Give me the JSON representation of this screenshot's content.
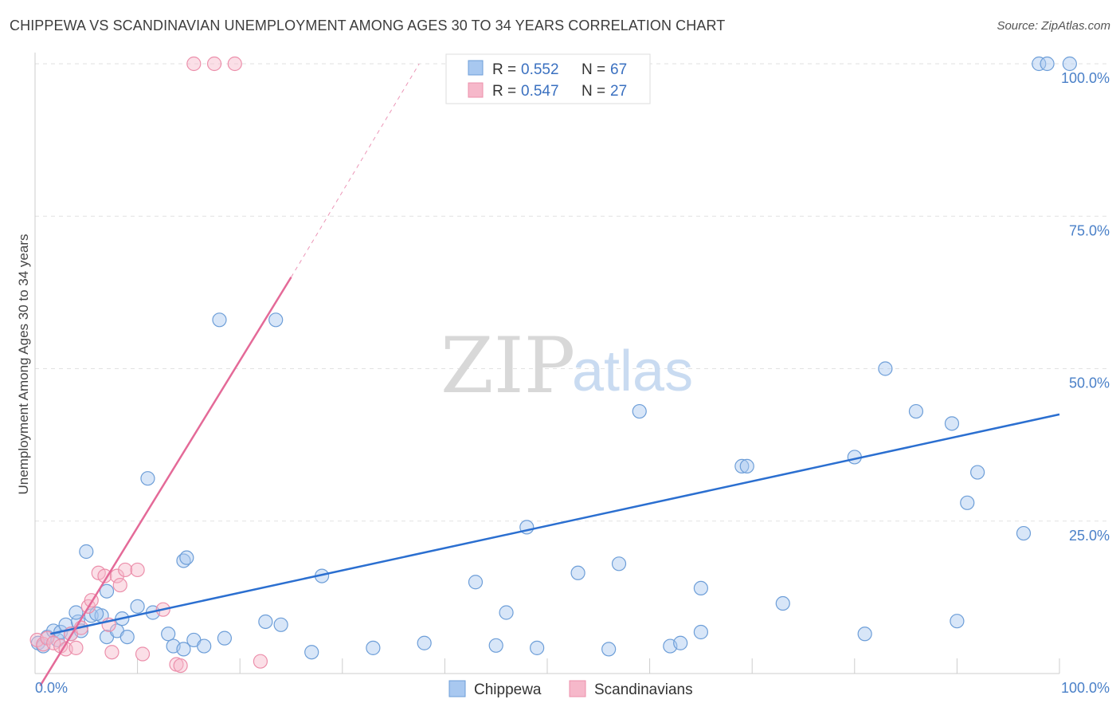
{
  "header": {
    "title": "CHIPPEWA VS SCANDINAVIAN UNEMPLOYMENT AMONG AGES 30 TO 34 YEARS CORRELATION CHART",
    "source": "Source: ZipAtlas.com"
  },
  "watermark": {
    "zip": "ZIP",
    "atlas": "atlas"
  },
  "legend": {
    "r_label": "R =",
    "n_label": "N =",
    "items": [
      {
        "r": "0.552",
        "n": "67",
        "color": "#a8c8f0"
      },
      {
        "r": "0.547",
        "n": "27",
        "color": "#f6b8ca"
      }
    ]
  },
  "chart_data": {
    "type": "scatter",
    "ylabel": "Unemployment Among Ages 30 to 34 years",
    "xlabel": "",
    "xlim": [
      0,
      100
    ],
    "ylim": [
      0,
      100
    ],
    "x_tick_labels": [
      "0.0%",
      "100.0%"
    ],
    "y_ticks": [
      {
        "value": 25,
        "label": "25.0%"
      },
      {
        "value": 50,
        "label": "50.0%"
      },
      {
        "value": 75,
        "label": "75.0%"
      },
      {
        "value": 100,
        "label": "100.0%"
      }
    ],
    "grid": "horizontal dashed",
    "legend_position": "top-center",
    "series": [
      {
        "name": "Chippewa",
        "color": "#a8c8f0",
        "stroke": "#6d9ed8",
        "trend": {
          "x": [
            1.5,
            100
          ],
          "y": [
            6.5,
            42.5
          ],
          "color": "#2b6fd0"
        },
        "points": [
          [
            0.3,
            5.0
          ],
          [
            0.8,
            4.5
          ],
          [
            1.2,
            6.0
          ],
          [
            1.8,
            7.0
          ],
          [
            2.2,
            5.5
          ],
          [
            2.5,
            6.8
          ],
          [
            3.0,
            8.0
          ],
          [
            3.5,
            6.5
          ],
          [
            4.2,
            8.5
          ],
          [
            4.5,
            7.0
          ],
          [
            5.5,
            9.5
          ],
          [
            6.5,
            9.5
          ],
          [
            7.0,
            6.0
          ],
          [
            8.0,
            7.0
          ],
          [
            8.5,
            9.0
          ],
          [
            9.0,
            6.0
          ],
          [
            10.0,
            11.0
          ],
          [
            11.5,
            10.0
          ],
          [
            13.0,
            6.5
          ],
          [
            13.5,
            4.5
          ],
          [
            14.5,
            4.0
          ],
          [
            15.5,
            5.5
          ],
          [
            16.5,
            4.5
          ],
          [
            18.5,
            5.8
          ],
          [
            22.5,
            8.5
          ],
          [
            24.0,
            8.0
          ],
          [
            27.0,
            3.5
          ],
          [
            33.0,
            4.2
          ],
          [
            38.0,
            5.0
          ],
          [
            45.0,
            4.6
          ],
          [
            49.0,
            4.2
          ],
          [
            56.0,
            4.0
          ],
          [
            65.0,
            6.8
          ],
          [
            73.0,
            11.5
          ],
          [
            81.0,
            6.5
          ],
          [
            90.0,
            8.6
          ],
          [
            62.0,
            4.5
          ],
          [
            63.0,
            5.0
          ],
          [
            5.0,
            20.0
          ],
          [
            7.0,
            13.5
          ],
          [
            11.0,
            32.0
          ],
          [
            14.5,
            18.5
          ],
          [
            14.8,
            19.0
          ],
          [
            18.0,
            58.0
          ],
          [
            23.5,
            58.0
          ],
          [
            28.0,
            16.0
          ],
          [
            43.0,
            15.0
          ],
          [
            46.0,
            10.0
          ],
          [
            48.0,
            24.0
          ],
          [
            53.0,
            16.5
          ],
          [
            57.0,
            18.0
          ],
          [
            59.0,
            43.0
          ],
          [
            65.0,
            14.0
          ],
          [
            69.0,
            34.0
          ],
          [
            69.5,
            34.0
          ],
          [
            80.0,
            35.5
          ],
          [
            83.0,
            50.0
          ],
          [
            86.0,
            43.0
          ],
          [
            89.5,
            41.0
          ],
          [
            91.0,
            28.0
          ],
          [
            92.0,
            33.0
          ],
          [
            96.5,
            23.0
          ],
          [
            98.0,
            100.0
          ],
          [
            98.8,
            100.0
          ],
          [
            101.0,
            100.0
          ],
          [
            4.0,
            10.0
          ],
          [
            6.0,
            9.8
          ]
        ]
      },
      {
        "name": "Scandinavians",
        "color": "#f6b8ca",
        "stroke": "#ec8fab",
        "trend": {
          "x": [
            0.5,
            25
          ],
          "y": [
            -2,
            65
          ],
          "dashed_to": [
            37.5,
            100
          ],
          "color": "#e46a98"
        },
        "points": [
          [
            0.2,
            5.5
          ],
          [
            0.8,
            4.8
          ],
          [
            1.2,
            5.8
          ],
          [
            1.8,
            5.0
          ],
          [
            2.5,
            4.5
          ],
          [
            3.0,
            4.0
          ],
          [
            3.5,
            6.5
          ],
          [
            4.0,
            4.2
          ],
          [
            4.5,
            7.5
          ],
          [
            5.2,
            11.0
          ],
          [
            5.5,
            12.0
          ],
          [
            6.2,
            16.5
          ],
          [
            6.8,
            16.0
          ],
          [
            7.2,
            8.0
          ],
          [
            7.5,
            3.5
          ],
          [
            8.0,
            16.0
          ],
          [
            8.3,
            14.5
          ],
          [
            8.8,
            17.0
          ],
          [
            10.0,
            17.0
          ],
          [
            10.5,
            3.2
          ],
          [
            12.5,
            10.5
          ],
          [
            13.8,
            1.5
          ],
          [
            14.2,
            1.3
          ],
          [
            22.0,
            2.0
          ],
          [
            15.5,
            100.0
          ],
          [
            17.5,
            100.0
          ],
          [
            19.5,
            100.0
          ]
        ]
      }
    ]
  },
  "bottom_legend": [
    {
      "label": "Chippewa",
      "color": "#a8c8f0"
    },
    {
      "label": "Scandinavians",
      "color": "#f6b8ca"
    }
  ]
}
